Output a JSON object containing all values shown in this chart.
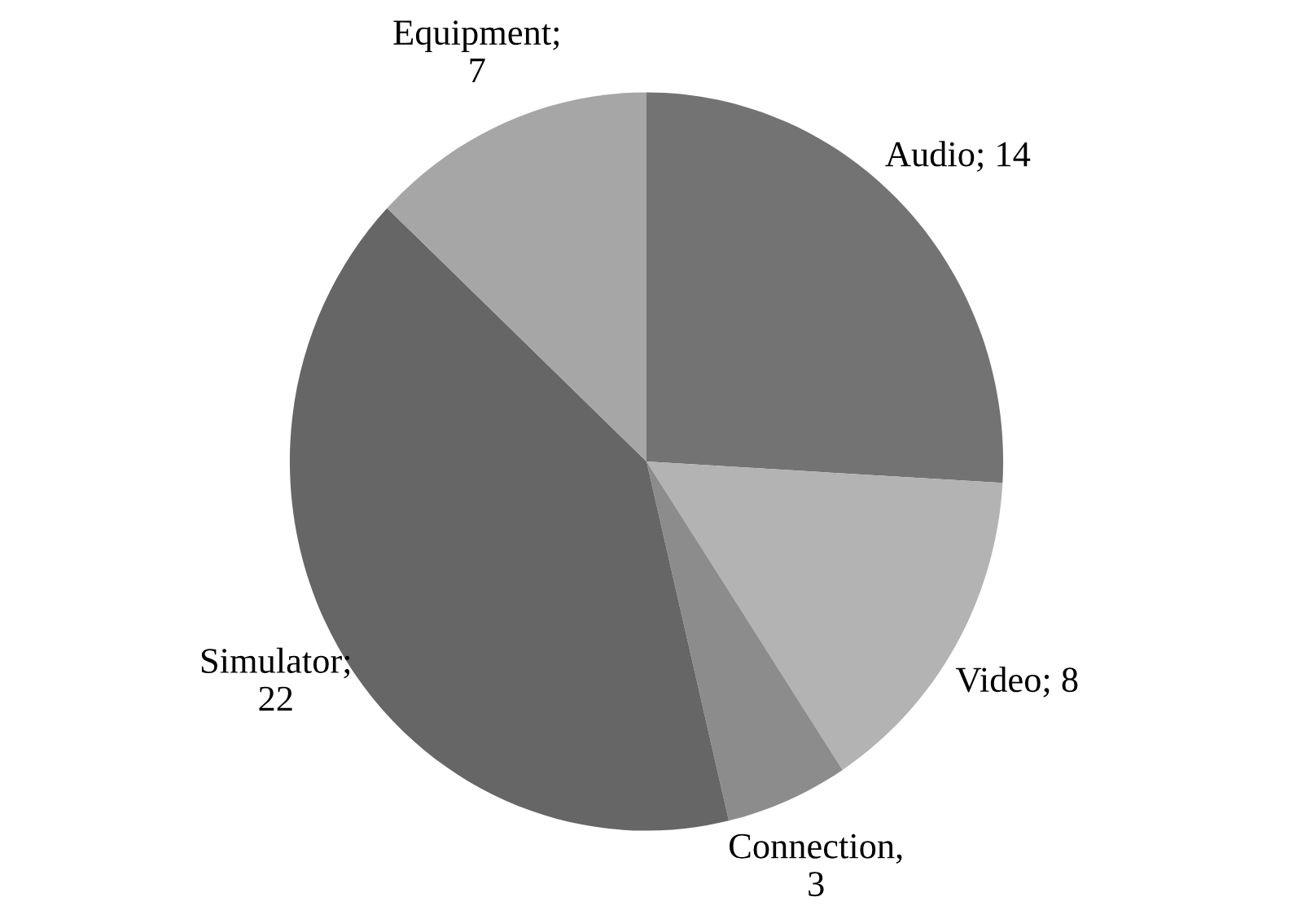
{
  "chart_data": {
    "type": "pie",
    "categories": [
      "Audio; 14",
      "Video; 8",
      "Connection,\n3",
      "Simulator;\n22",
      "Equipment;\n7"
    ],
    "values": [
      14,
      8,
      3,
      22,
      7
    ],
    "colors": [
      "#737373",
      "#b3b3b3",
      "#8c8c8c",
      "#666666",
      "#a6a6a6"
    ],
    "legend": false
  }
}
